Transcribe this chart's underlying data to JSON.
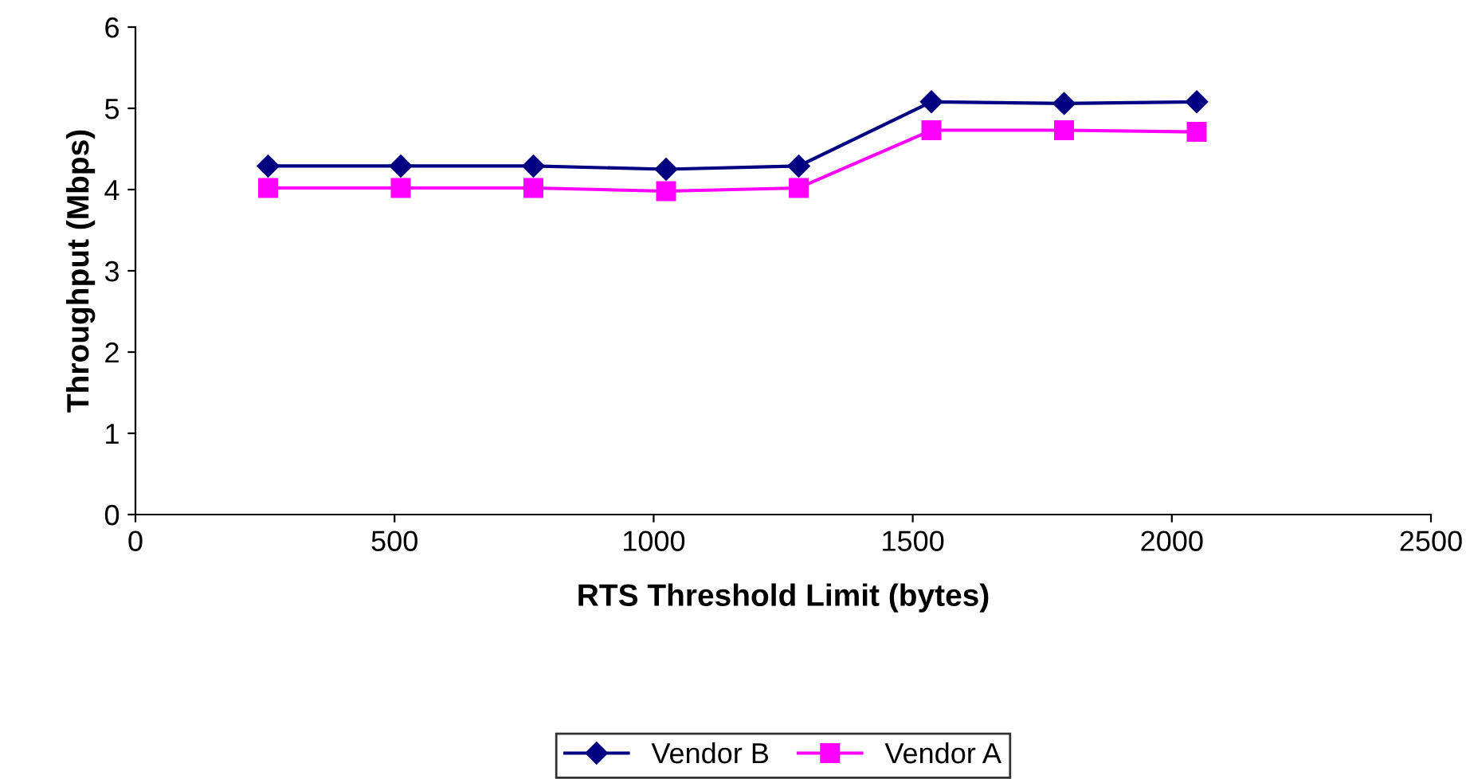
{
  "chart_data": {
    "type": "line",
    "xlabel": "RTS Threshold Limit (bytes)",
    "ylabel": "Throughput (Mbps)",
    "x": [
      256,
      512,
      768,
      1024,
      1280,
      1536,
      1792,
      2048
    ],
    "series": [
      {
        "name": "Vendor B",
        "color": "#000080",
        "marker": "diamond",
        "values": [
          4.29,
          4.29,
          4.29,
          4.25,
          4.29,
          5.08,
          5.06,
          5.08
        ]
      },
      {
        "name": "Vendor A",
        "color": "#ff00ff",
        "marker": "square",
        "values": [
          4.02,
          4.02,
          4.02,
          3.98,
          4.02,
          4.73,
          4.73,
          4.71
        ]
      }
    ],
    "xlim": [
      0,
      2500
    ],
    "xticks": [
      0,
      500,
      1000,
      1500,
      2000,
      2500
    ],
    "ylim": [
      0,
      6
    ],
    "yticks": [
      0,
      1,
      2,
      3,
      4,
      5,
      6
    ],
    "grid": false,
    "legend": "bottom",
    "line_style": "solid"
  }
}
